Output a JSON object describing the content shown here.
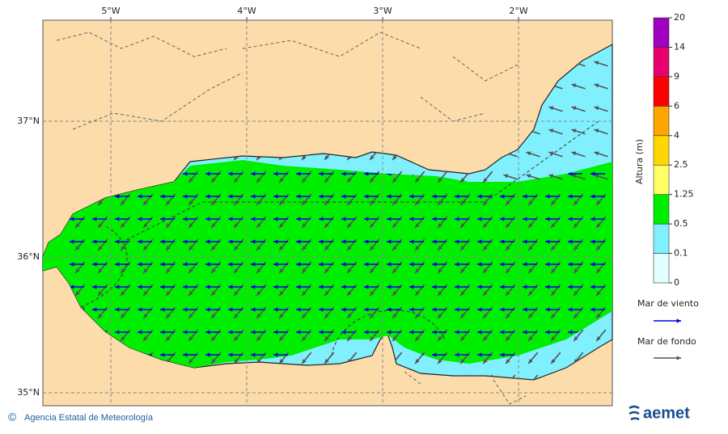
{
  "map": {
    "xlim": [
      -5.5,
      -1.31
    ],
    "ylim": [
      34.905,
      37.744
    ],
    "lon_ticks": [
      {
        "value": -5,
        "label": "5°W"
      },
      {
        "value": -4,
        "label": "4°W"
      },
      {
        "value": -3,
        "label": "3°W"
      },
      {
        "value": -2,
        "label": "2°W"
      }
    ],
    "lat_ticks": [
      {
        "value": 37,
        "label": "37°N"
      },
      {
        "value": 36,
        "label": "36°N"
      },
      {
        "value": 35,
        "label": "35°N"
      }
    ]
  },
  "colorbar": {
    "label": "Altura (m)",
    "levels": [
      0,
      0.1,
      0.5,
      1.25,
      2.5,
      4,
      6,
      9,
      14,
      20
    ],
    "colors": [
      "#e0ffff",
      "#80f0ff",
      "#00ee00",
      "#ffff66",
      "#ffd700",
      "#ffa500",
      "#ff0000",
      "#e8006e",
      "#a000c0"
    ]
  },
  "legend": [
    {
      "label": "Mar de viento",
      "color": "#0000dd"
    },
    {
      "label": "Mar de fondo",
      "color": "#555555"
    }
  ],
  "footer": {
    "symbol": "©",
    "copyright": "Agencia Estatal de Meteorología",
    "logo": "aemet"
  }
}
